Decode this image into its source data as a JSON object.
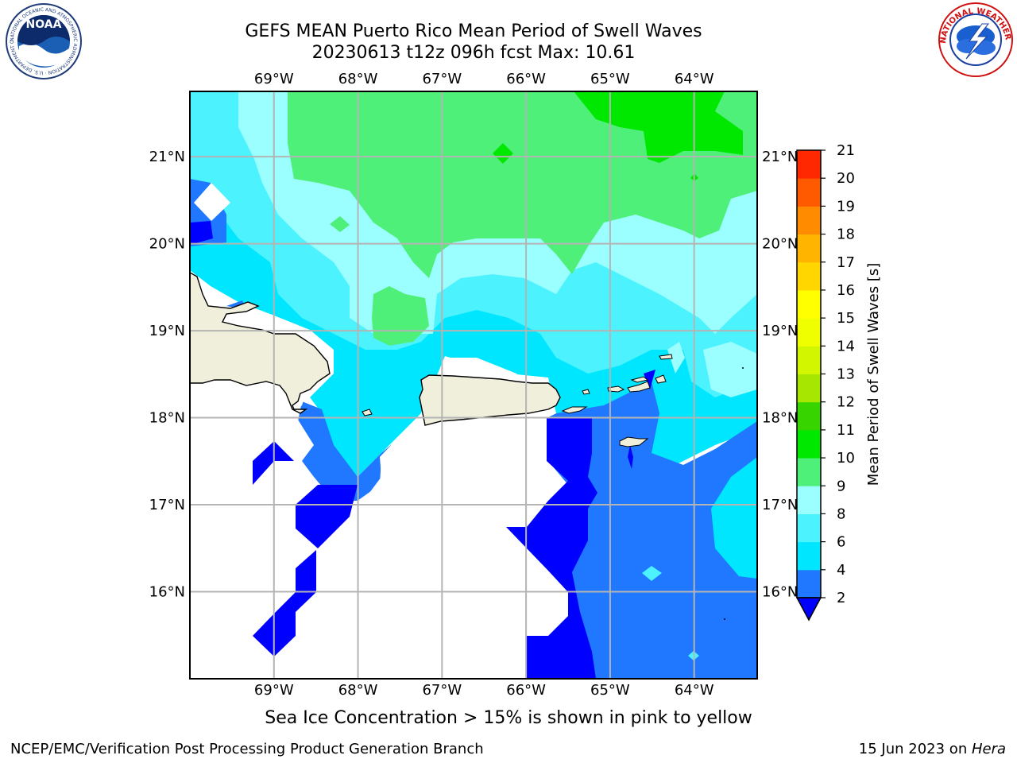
{
  "title_line1": "GEFS MEAN Puerto Rico Mean Period of Swell Waves",
  "title_line2": "20230613 t12z 096h fcst   Max: 10.61",
  "logos": {
    "left": {
      "name": "NOAA",
      "text": "NOAA",
      "ring_text": "NATIONAL OCEANIC AND ATMOSPHERIC ADMINISTRATION · U.S. DEPARTMENT OF COMMERCE"
    },
    "right": {
      "name": "National Weather Service",
      "ring_text": "NATIONAL WEATHER SERVICE"
    }
  },
  "map": {
    "lon_range": [
      -70,
      -63.25
    ],
    "lat_range": [
      15,
      21.75
    ],
    "lon_ticks": [
      {
        "value": -69,
        "label": "69°W"
      },
      {
        "value": -68,
        "label": "68°W"
      },
      {
        "value": -67,
        "label": "67°W"
      },
      {
        "value": -66,
        "label": "66°W"
      },
      {
        "value": -65,
        "label": "65°W"
      },
      {
        "value": -64,
        "label": "64°W"
      }
    ],
    "lat_ticks": [
      {
        "value": 21,
        "label": "21°N"
      },
      {
        "value": 20,
        "label": "20°N"
      },
      {
        "value": 19,
        "label": "19°N"
      },
      {
        "value": 18,
        "label": "18°N"
      },
      {
        "value": 17,
        "label": "17°N"
      },
      {
        "value": 16,
        "label": "16°N"
      }
    ],
    "gridlines": true,
    "land_color": "#efefdc",
    "no_data_color": "#ffffff"
  },
  "colorbar": {
    "label": "Mean Period of Swell Waves [s]",
    "ticks": [
      "2",
      "4",
      "6",
      "8",
      "9",
      "10",
      "11",
      "12",
      "13",
      "14",
      "15",
      "16",
      "17",
      "18",
      "19",
      "20",
      "21"
    ],
    "colors": [
      "#1f78ff",
      "#00e6ff",
      "#4df2ff",
      "#9cffff",
      "#4ff07a",
      "#00e800",
      "#38d400",
      "#a6e600",
      "#d2f500",
      "#f0ff00",
      "#ffff00",
      "#ffd600",
      "#ffb400",
      "#ff8c00",
      "#ff5a00",
      "#ff2800"
    ],
    "extend_low_color": "#0000ff"
  },
  "ice_note": "Sea Ice Concentration > 15% is shown in pink to yellow",
  "footer_left": "NCEP/EMC/Verification Post Processing Product Generation Branch",
  "footer_right_prefix": "15 Jun 2023 on ",
  "footer_right_machine": "Hera"
}
